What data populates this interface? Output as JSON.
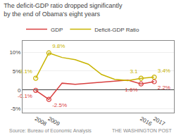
{
  "chart_data": {
    "type": "line",
    "title": "The deficit-GDP ratio dropped significantly by the end of Obama's eight years",
    "x": [
      2008,
      2009,
      2010,
      2011,
      2012,
      2013,
      2014,
      2015,
      2016,
      2017
    ],
    "series": [
      {
        "name": "GDP",
        "color": "#d94040",
        "values": [
          -0.1,
          -2.5,
          1.8,
          1.5,
          1.8,
          2.1,
          2.3,
          2.6,
          1.6,
          2.2
        ],
        "value_labels": [
          "-0.1%",
          "-2.5%",
          null,
          null,
          null,
          null,
          null,
          null,
          "1.6%",
          "2.2%"
        ]
      },
      {
        "name": "Deficit-GDP Ratio",
        "color": "#c8b400",
        "values": [
          3.1,
          9.8,
          8.6,
          8.0,
          6.8,
          4.1,
          2.8,
          2.5,
          3.1,
          3.4
        ],
        "value_labels": [
          "3.1%",
          "9.8%",
          null,
          null,
          null,
          null,
          null,
          null,
          "3.1",
          "3.4%"
        ]
      }
    ],
    "xlim": [
      2007.0,
      2018.5
    ],
    "xticks": [
      2008,
      2009,
      2016,
      2017
    ],
    "ylim": [
      -6,
      13
    ],
    "yticks": [
      {
        "value": -5,
        "label": "-5%"
      },
      0,
      {
        "value": 5,
        "label": "5%"
      },
      {
        "value": 10,
        "label": "10%"
      }
    ],
    "grid": true,
    "legend": "top",
    "data_labels": true,
    "marker": "circle",
    "annotations": [
      "Source: Bureau of Economic Analysis",
      "THE WASHINGTON POST"
    ]
  }
}
